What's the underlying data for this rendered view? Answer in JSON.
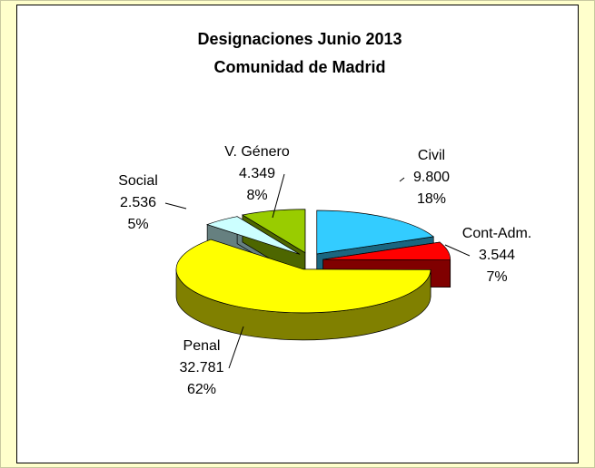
{
  "chart_data": {
    "type": "pie",
    "title": "Designaciones Junio 2013",
    "subtitle": "Comunidad de Madrid",
    "categories": [
      "Civil",
      "Cont-Adm.",
      "Penal",
      "Social",
      "V. Género"
    ],
    "values": [
      9800,
      3544,
      32781,
      2536,
      4349
    ],
    "value_labels": [
      "9.800",
      "3.544",
      "32.781",
      "2.536",
      "4.349"
    ],
    "percent_labels": [
      "18%",
      "7%",
      "62%",
      "5%",
      "8%"
    ],
    "colors": [
      "#33ccff",
      "#ff0000",
      "#ffff00",
      "#ccffff",
      "#99cc00"
    ]
  }
}
